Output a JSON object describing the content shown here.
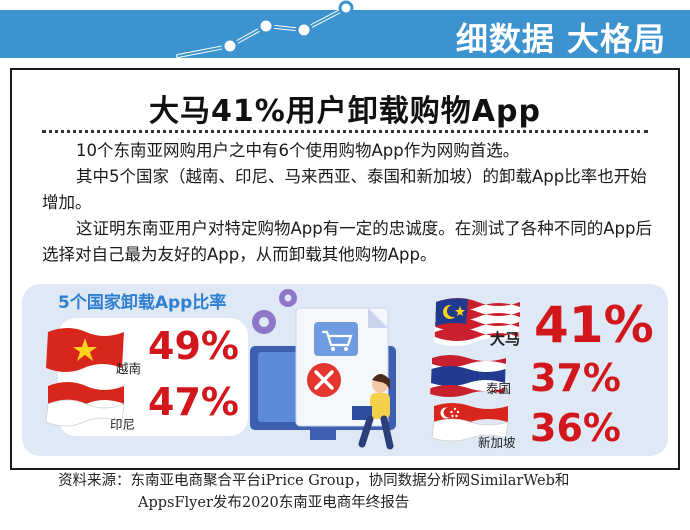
{
  "header": {
    "title": "细数据 大格局",
    "accent_color": "#3d93cf",
    "decoration_icon": "line-chart-icon"
  },
  "headline": "大马41%用户卸载购物App",
  "paragraphs": [
    "10个东南亚网购用户之中有6个使用购物App作为网购首选。",
    "其中5个国家（越南、印尼、马来西亚、泰国和新加坡）的卸载App比率也开始增加。",
    "这证明东南亚用户对特定购物App有一定的忠诚度。在测试了各种不同的App后选择对自己最为友好的App，从而卸载其他购物App。"
  ],
  "infographic": {
    "title": "5个国家卸载App比率",
    "illustration_icon": "shopping-app-uninstall-illustration",
    "countries": [
      {
        "name": "越南",
        "percent": "49%",
        "flag_icon": "vietnam-flag-icon"
      },
      {
        "name": "印尼",
        "percent": "47%",
        "flag_icon": "indonesia-flag-icon"
      },
      {
        "name": "大马",
        "percent": "41%",
        "flag_icon": "malaysia-flag-icon"
      },
      {
        "name": "泰国",
        "percent": "37%",
        "flag_icon": "thailand-flag-icon"
      },
      {
        "name": "新加坡",
        "percent": "36%",
        "flag_icon": "singapore-flag-icon"
      }
    ],
    "percent_color": "#d1171c",
    "title_color": "#2f7fd0"
  },
  "source": {
    "line1": "资料来源：东南亚电商聚合平台iPrice Group，协同数据分析网SimilarWeb和",
    "line2": "AppsFlyer发布2020东南亚电商年终报告"
  }
}
